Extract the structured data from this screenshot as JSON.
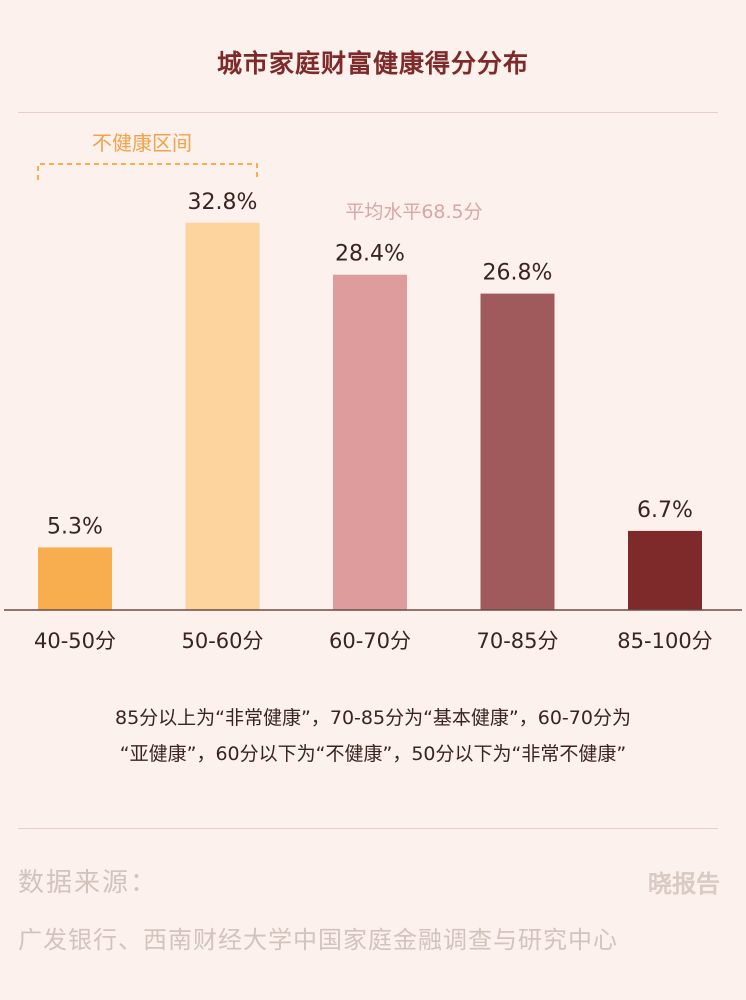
{
  "chart_data": {
    "type": "bar",
    "title": "城市家庭财富健康得分分布",
    "categories": [
      "40-50分",
      "50-60分",
      "60-70分",
      "70-85分",
      "85-100分"
    ],
    "values": [
      5.3,
      32.8,
      28.4,
      26.8,
      6.7
    ],
    "value_labels": [
      "5.3%",
      "32.8%",
      "28.4%",
      "26.8%",
      "6.7%"
    ],
    "colors": [
      "#F8AE4E",
      "#FDD49E",
      "#DE9C9D",
      "#A15A5C",
      "#7E2A2A"
    ],
    "ylim": [
      0,
      36
    ],
    "grid": false,
    "annotations": {
      "unhealthy_range": "不健康区间",
      "average": "平均水平68.5分"
    }
  },
  "note": {
    "line1": "85分以上为“非常健康”，70-85分为“基本健康”，60-70分为",
    "line2": "“亚健康”，60分以下为“不健康”，50分以下为“非常不健康”"
  },
  "source": {
    "label": "数据来源：",
    "text": "广发银行、西南财经大学中国家庭金融调查与研究中心"
  },
  "brand": "晓报告"
}
